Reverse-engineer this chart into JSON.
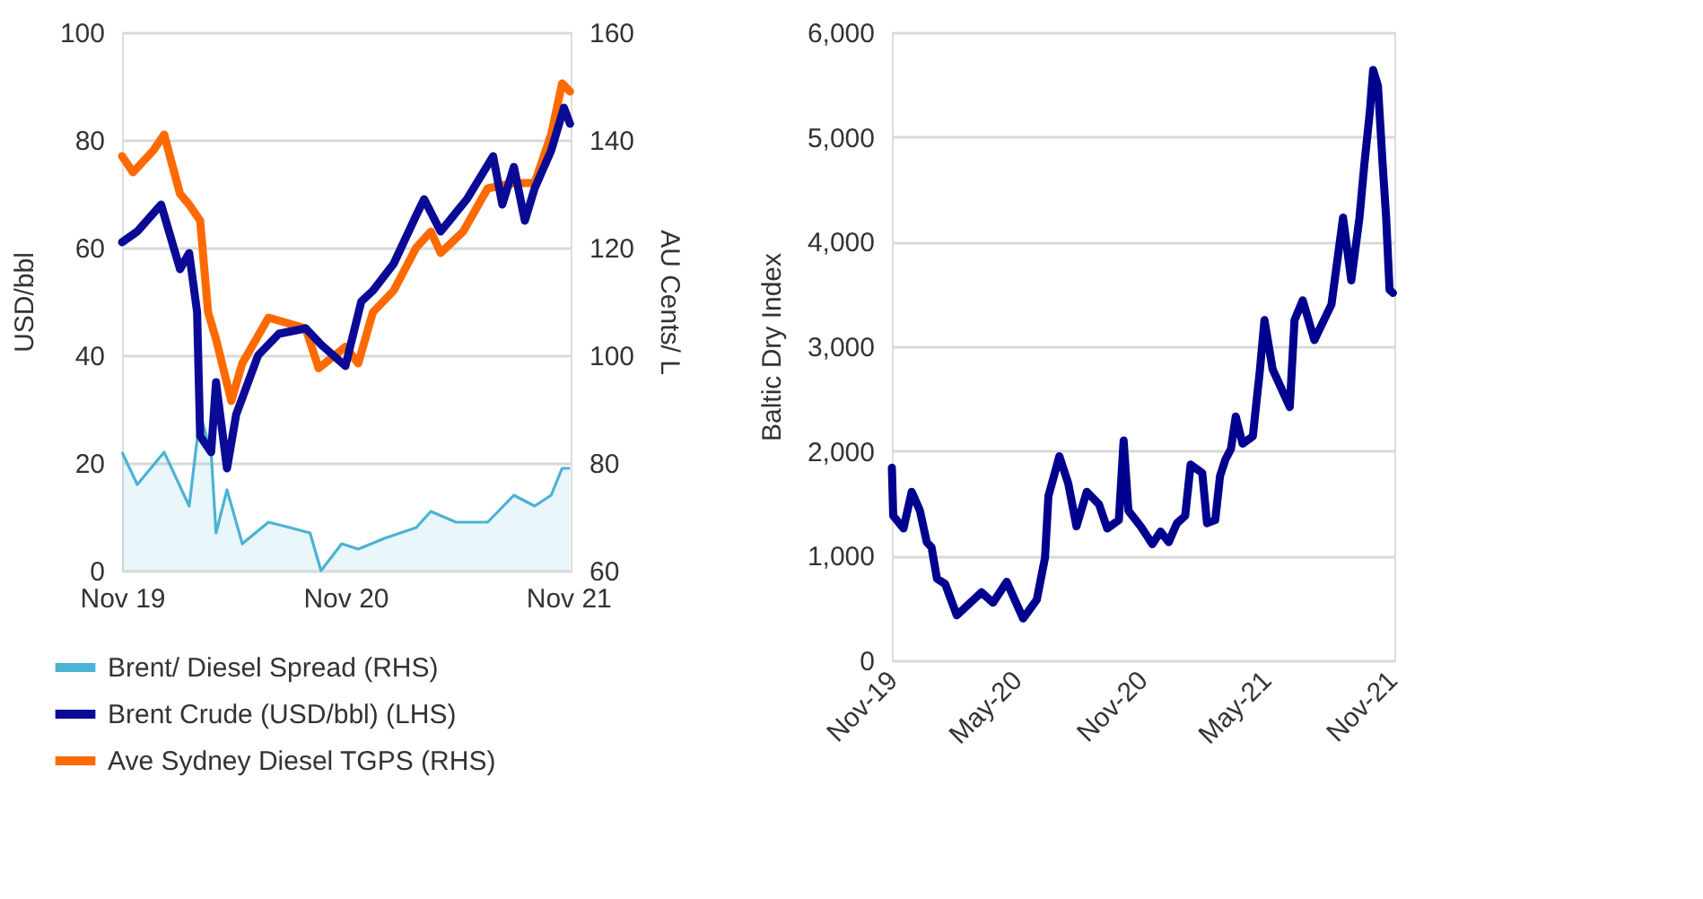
{
  "chart_data": [
    {
      "type": "line",
      "ylabel": "USD/bbl",
      "y2label": "AU Cents/ L",
      "xlim": [
        "2019-11-01",
        "2021-11-05"
      ],
      "xticks": [
        {
          "value": "2019-11-01",
          "label": "Nov 19"
        },
        {
          "value": "2020-11-01",
          "label": "Nov 20"
        },
        {
          "value": "2021-11-01",
          "label": "Nov 21"
        }
      ],
      "ylim": [
        0,
        100
      ],
      "yticks": [
        0,
        20,
        40,
        60,
        80,
        100
      ],
      "y2lim": [
        60,
        160
      ],
      "y2ticks": [
        60,
        80,
        100,
        120,
        140,
        160
      ],
      "grid": "y",
      "legend": "bottom",
      "line_style": "solid",
      "marker": "none",
      "series": [
        {
          "name": "Brent/ Diesel Spread (RHS)",
          "type": "area",
          "axis": "y2",
          "color": "#4bb3d3",
          "x": [
            "2019-11-01",
            "2019-11-26",
            "2020-01-09",
            "2020-02-19",
            "2020-03-08",
            "2020-03-26",
            "2020-04-03",
            "2020-04-21",
            "2020-05-16",
            "2020-06-28",
            "2020-08-02",
            "2020-09-04",
            "2020-09-22",
            "2020-10-26",
            "2020-11-22",
            "2021-01-04",
            "2021-02-25",
            "2021-03-21",
            "2021-05-01",
            "2021-06-22",
            "2021-08-04",
            "2021-09-07",
            "2021-10-04",
            "2021-10-22",
            "2021-11-04"
          ],
          "values": [
            82,
            76,
            82,
            72,
            89,
            82,
            67,
            75,
            65,
            69,
            68,
            67,
            60,
            65,
            64,
            66,
            68,
            71,
            69,
            69,
            74,
            72,
            74,
            79,
            79
          ]
        },
        {
          "name": "Brent Crude (USD/bbl) (LHS)",
          "axis": "y",
          "color": "#0a0a96",
          "x": [
            "2019-11-01",
            "2019-11-26",
            "2020-01-04",
            "2020-02-04",
            "2020-02-19",
            "2020-03-03",
            "2020-03-08",
            "2020-03-26",
            "2020-04-03",
            "2020-04-21",
            "2020-05-06",
            "2020-06-11",
            "2020-07-15",
            "2020-08-28",
            "2020-09-22",
            "2020-11-01",
            "2020-11-27",
            "2020-12-16",
            "2021-01-19",
            "2021-02-25",
            "2021-03-10",
            "2021-04-06",
            "2021-05-19",
            "2021-07-01",
            "2021-07-16",
            "2021-08-04",
            "2021-08-22",
            "2021-09-07",
            "2021-10-04",
            "2021-10-25",
            "2021-11-04"
          ],
          "values": [
            61,
            63,
            68,
            56,
            59,
            48,
            25,
            22,
            35,
            19,
            29,
            40,
            44,
            45,
            42,
            38,
            50,
            52,
            57,
            66,
            69,
            63,
            69,
            77,
            68,
            75,
            65,
            71,
            78,
            86,
            83
          ]
        },
        {
          "name": "Ave Sydney Diesel TGPS (RHS)",
          "axis": "y2",
          "color": "#ff6a00",
          "x": [
            "2019-11-01",
            "2019-11-19",
            "2019-12-22",
            "2020-01-09",
            "2020-02-04",
            "2020-02-19",
            "2020-03-08",
            "2020-03-21",
            "2020-04-03",
            "2020-04-28",
            "2020-05-16",
            "2020-06-28",
            "2020-08-28",
            "2020-09-18",
            "2020-11-01",
            "2020-11-22",
            "2020-12-16",
            "2021-01-19",
            "2021-02-25",
            "2021-03-21",
            "2021-04-06",
            "2021-05-13",
            "2021-06-22",
            "2021-08-04",
            "2021-09-07",
            "2021-10-04",
            "2021-10-22",
            "2021-11-04"
          ],
          "values": [
            137,
            134,
            138,
            141,
            130,
            128,
            125,
            108,
            103,
            91.5,
            98.5,
            107,
            105,
            97.6,
            101.6,
            98.5,
            108,
            112,
            120,
            123,
            119,
            123,
            131,
            132,
            132,
            141,
            150.5,
            149
          ]
        }
      ]
    },
    {
      "type": "line",
      "ylabel": "Baltic Dry Index",
      "xlim": [
        "2019-11-01",
        "2021-11-05"
      ],
      "xticks": [
        {
          "value": "2019-11-01",
          "label": "Nov-19"
        },
        {
          "value": "2020-05-01",
          "label": "May-20"
        },
        {
          "value": "2020-11-01",
          "label": "Nov-20"
        },
        {
          "value": "2021-05-01",
          "label": "May-21"
        },
        {
          "value": "2021-11-01",
          "label": "Nov-21"
        }
      ],
      "ylim": [
        0,
        6000
      ],
      "yticks": [
        0,
        {
          "value": 1000,
          "label": "1,000"
        },
        {
          "value": 2000,
          "label": "2,000"
        },
        {
          "value": 3000,
          "label": "3,000"
        },
        {
          "value": 4000,
          "label": "4,000"
        },
        {
          "value": 5000,
          "label": "5,000"
        },
        {
          "value": 6000,
          "label": "6,000"
        }
      ],
      "grid": "y",
      "line_style": "solid",
      "marker": "none",
      "series": [
        {
          "axis": "y",
          "color": "#00008f",
          "x": [
            "2019-11-01",
            "2019-11-03",
            "2019-11-18",
            "2019-11-30",
            "2019-12-12",
            "2019-12-22",
            "2019-12-29",
            "2020-01-06",
            "2020-01-18",
            "2020-02-04",
            "2020-03-11",
            "2020-03-28",
            "2020-04-17",
            "2020-05-11",
            "2020-05-31",
            "2020-06-12",
            "2020-06-17",
            "2020-07-03",
            "2020-07-16",
            "2020-07-28",
            "2020-08-12",
            "2020-08-30",
            "2020-09-11",
            "2020-09-28",
            "2020-10-05",
            "2020-10-12",
            "2020-10-30",
            "2020-11-16",
            "2020-11-28",
            "2020-12-10",
            "2020-12-22",
            "2021-01-03",
            "2021-01-11",
            "2021-01-28",
            "2021-02-04",
            "2021-02-16",
            "2021-02-23",
            "2021-03-03",
            "2021-03-11",
            "2021-03-18",
            "2021-03-28",
            "2021-04-12",
            "2021-04-17",
            "2021-04-22",
            "2021-04-29",
            "2021-05-11",
            "2021-06-05",
            "2021-06-12",
            "2021-06-24",
            "2021-07-11",
            "2021-08-05",
            "2021-08-22",
            "2021-09-03",
            "2021-09-15",
            "2021-09-22",
            "2021-09-30",
            "2021-10-05",
            "2021-10-12",
            "2021-10-19",
            "2021-10-24",
            "2021-10-29",
            "2021-11-03"
          ],
          "values": [
            1840,
            1380,
            1260,
            1610,
            1430,
            1130,
            1080,
            780,
            730,
            430,
            650,
            550,
            750,
            400,
            580,
            980,
            1570,
            1950,
            1690,
            1280,
            1610,
            1490,
            1260,
            1340,
            2100,
            1430,
            1280,
            1110,
            1230,
            1130,
            1310,
            1380,
            1870,
            1790,
            1310,
            1340,
            1760,
            1920,
            2020,
            2330,
            2070,
            2140,
            2450,
            2750,
            3250,
            2780,
            2420,
            3250,
            3440,
            3060,
            3400,
            4230,
            3630,
            4230,
            4730,
            5230,
            5640,
            5490,
            4730,
            4230,
            3540,
            3510
          ]
        }
      ]
    }
  ]
}
